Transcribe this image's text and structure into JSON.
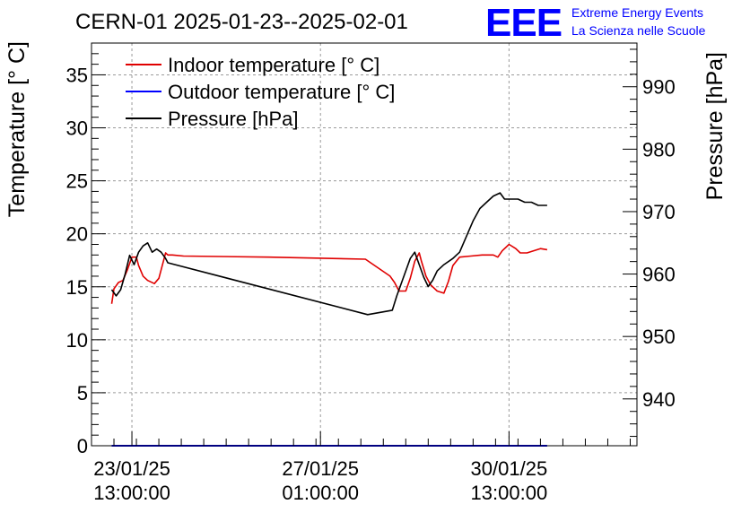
{
  "colors": {
    "indoor": "#e00000",
    "outdoor": "#0000ff",
    "pressure": "#000000",
    "grid": "#9a9a9a",
    "brand": "#0000ff"
  },
  "brand": {
    "logo": "EEE",
    "line1": "Extreme Energy Events",
    "line2": "La Scienza nelle Scuole"
  },
  "chart_data": {
    "type": "line",
    "title": "CERN-01 2025-01-23--2025-02-01",
    "ylabel": "Temperature [° C]",
    "y2label": "Pressure [hPa]",
    "ylim": [
      0,
      38
    ],
    "y2lim": [
      932.5,
      997
    ],
    "x_range_days": [
      "2025-01-22 19:00",
      "2025-02-01 22:00"
    ],
    "grid": true,
    "legend_position": "top-left",
    "left_ticks": [
      "0",
      "5",
      "10",
      "15",
      "20",
      "25",
      "30",
      "35"
    ],
    "right_ticks": [
      "940",
      "950",
      "960",
      "970",
      "980",
      "990"
    ],
    "x_ticks": [
      {
        "date": "23/01/25",
        "time": "13:00:00"
      },
      {
        "date": "27/01/25",
        "time": "01:00:00"
      },
      {
        "date": "30/01/25",
        "time": "13:00:00"
      }
    ],
    "series": [
      {
        "name": "Indoor temperature [° C]",
        "axis": "left",
        "points": [
          [
            "2025-01-23 04:00",
            13.4
          ],
          [
            "2025-01-23 05:00",
            14.8
          ],
          [
            "2025-01-23 07:00",
            15.4
          ],
          [
            "2025-01-23 09:00",
            15.6
          ],
          [
            "2025-01-23 11:00",
            16.6
          ],
          [
            "2025-01-23 13:00",
            17.8
          ],
          [
            "2025-01-23 15:00",
            17.8
          ],
          [
            "2025-01-23 16:00",
            17.0
          ],
          [
            "2025-01-23 18:00",
            16.0
          ],
          [
            "2025-01-23 20:00",
            15.6
          ],
          [
            "2025-01-23 23:00",
            15.3
          ],
          [
            "2025-01-24 01:00",
            15.8
          ],
          [
            "2025-01-24 03:00",
            17.4
          ],
          [
            "2025-01-24 04:00",
            18.2
          ],
          [
            "2025-01-24 05:00",
            18.0
          ],
          [
            "2025-01-24 07:00",
            18.0
          ],
          [
            "2025-01-24 12:00",
            17.9
          ],
          [
            "2025-01-26 02:00",
            17.8
          ],
          [
            "2025-01-27 21:00",
            17.6
          ],
          [
            "2025-01-28 08:00",
            16.0
          ],
          [
            "2025-01-28 10:00",
            15.4
          ],
          [
            "2025-01-28 12:00",
            14.6
          ],
          [
            "2025-01-28 15:00",
            14.6
          ],
          [
            "2025-01-28 17:00",
            15.8
          ],
          [
            "2025-01-28 19:00",
            17.4
          ],
          [
            "2025-01-28 21:00",
            18.2
          ],
          [
            "2025-01-28 22:00",
            17.4
          ],
          [
            "2025-01-29 00:00",
            16.0
          ],
          [
            "2025-01-29 02:00",
            15.2
          ],
          [
            "2025-01-29 05:00",
            14.6
          ],
          [
            "2025-01-29 08:00",
            14.4
          ],
          [
            "2025-01-29 10:00",
            15.5
          ],
          [
            "2025-01-29 12:00",
            17.0
          ],
          [
            "2025-01-29 15:00",
            17.8
          ],
          [
            "2025-01-29 20:00",
            17.9
          ],
          [
            "2025-01-30 01:00",
            18.0
          ],
          [
            "2025-01-30 06:00",
            18.0
          ],
          [
            "2025-01-30 08:00",
            17.8
          ],
          [
            "2025-01-30 10:00",
            18.4
          ],
          [
            "2025-01-30 13:00",
            19.0
          ],
          [
            "2025-01-30 16:00",
            18.6
          ],
          [
            "2025-01-30 18:00",
            18.2
          ],
          [
            "2025-01-30 21:00",
            18.2
          ],
          [
            "2025-01-31 00:00",
            18.4
          ],
          [
            "2025-01-31 03:00",
            18.6
          ],
          [
            "2025-01-31 06:00",
            18.5
          ]
        ]
      },
      {
        "name": "Outdoor temperature [° C]",
        "axis": "left",
        "points": [
          [
            "2025-01-23 04:00",
            0.0
          ],
          [
            "2025-01-31 06:00",
            0.0
          ]
        ]
      },
      {
        "name": "Pressure [hPa]",
        "axis": "right",
        "points": [
          [
            "2025-01-23 04:00",
            957.5
          ],
          [
            "2025-01-23 06:00",
            956.5
          ],
          [
            "2025-01-23 08:00",
            957.5
          ],
          [
            "2025-01-23 10:00",
            960.0
          ],
          [
            "2025-01-23 12:00",
            963.0
          ],
          [
            "2025-01-23 14:00",
            961.5
          ],
          [
            "2025-01-23 16:00",
            963.5
          ],
          [
            "2025-01-23 18:00",
            964.5
          ],
          [
            "2025-01-23 20:00",
            965.0
          ],
          [
            "2025-01-23 22:00",
            963.5
          ],
          [
            "2025-01-24 00:00",
            964.0
          ],
          [
            "2025-01-24 02:00",
            963.5
          ],
          [
            "2025-01-24 04:00",
            962.5
          ],
          [
            "2025-01-24 05:00",
            961.8
          ],
          [
            "2025-01-27 22:00",
            953.5
          ],
          [
            "2025-01-28 09:00",
            954.2
          ],
          [
            "2025-01-28 11:00",
            956.5
          ],
          [
            "2025-01-28 13:00",
            958.5
          ],
          [
            "2025-01-28 15:00",
            960.5
          ],
          [
            "2025-01-28 17:00",
            962.5
          ],
          [
            "2025-01-28 19:00",
            963.5
          ],
          [
            "2025-01-28 21:00",
            961.5
          ],
          [
            "2025-01-28 23:00",
            959.5
          ],
          [
            "2025-01-29 01:00",
            958.0
          ],
          [
            "2025-01-29 03:00",
            959.0
          ],
          [
            "2025-01-29 05:00",
            960.5
          ],
          [
            "2025-01-29 08:00",
            961.5
          ],
          [
            "2025-01-29 12:00",
            962.5
          ],
          [
            "2025-01-29 15:00",
            963.5
          ],
          [
            "2025-01-29 18:00",
            966.0
          ],
          [
            "2025-01-29 21:00",
            968.5
          ],
          [
            "2025-01-30 00:00",
            970.5
          ],
          [
            "2025-01-30 03:00",
            971.5
          ],
          [
            "2025-01-30 06:00",
            972.5
          ],
          [
            "2025-01-30 09:00",
            973.0
          ],
          [
            "2025-01-30 11:00",
            972.0
          ],
          [
            "2025-01-30 14:00",
            972.0
          ],
          [
            "2025-01-30 17:00",
            972.0
          ],
          [
            "2025-01-30 20:00",
            971.5
          ],
          [
            "2025-01-30 23:00",
            971.5
          ],
          [
            "2025-01-31 02:00",
            971.0
          ],
          [
            "2025-01-31 06:00",
            971.0
          ]
        ]
      }
    ]
  }
}
